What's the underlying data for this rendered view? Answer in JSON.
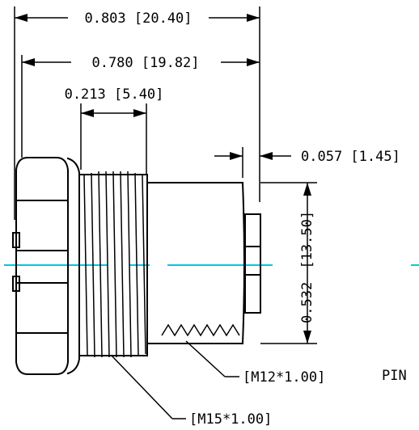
{
  "dimensions": {
    "overall_length": "0.803 [20.40]",
    "body_length": "0.780 [19.82]",
    "thread_length": "0.213 [5.40]",
    "face_offset": "0.057 [1.45]",
    "diameter_in": "0.532",
    "diameter_mm": "[13.50]"
  },
  "callouts": {
    "inner_thread": "[M12*1.00]",
    "outer_thread": "[M15*1.00]"
  },
  "view_label": "PIN",
  "colors": {
    "line": "#000000",
    "centerline": "#00c8e6",
    "background": "#ffffff"
  }
}
